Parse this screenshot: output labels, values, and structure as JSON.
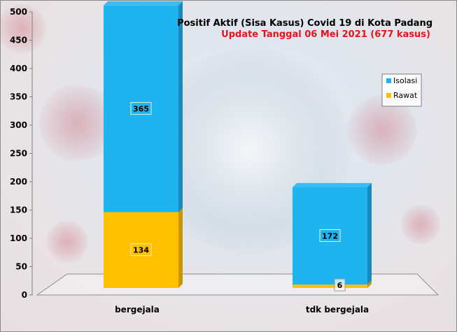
{
  "chart_data": {
    "type": "bar",
    "stacked": true,
    "three_d": true,
    "title": "Positif Aktif  (Sisa Kasus) Covid 19 di Kota Padang",
    "subtitle": "Update Tanggal 06 Mei 2021  (677 kasus)",
    "categories": [
      "bergejala",
      "tdk bergejala"
    ],
    "series": [
      {
        "name": "Rawat",
        "values": [
          134,
          6
        ],
        "color": "#ffc000"
      },
      {
        "name": "Isolasi",
        "values": [
          365,
          172
        ],
        "color": "#1eb4f0"
      }
    ],
    "ylim": [
      0,
      500
    ],
    "yticks": [
      0,
      50,
      100,
      150,
      200,
      250,
      300,
      350,
      400,
      450,
      500
    ],
    "legend": {
      "position": "right",
      "order": [
        "Isolasi",
        "Rawat"
      ]
    },
    "grid": false
  }
}
